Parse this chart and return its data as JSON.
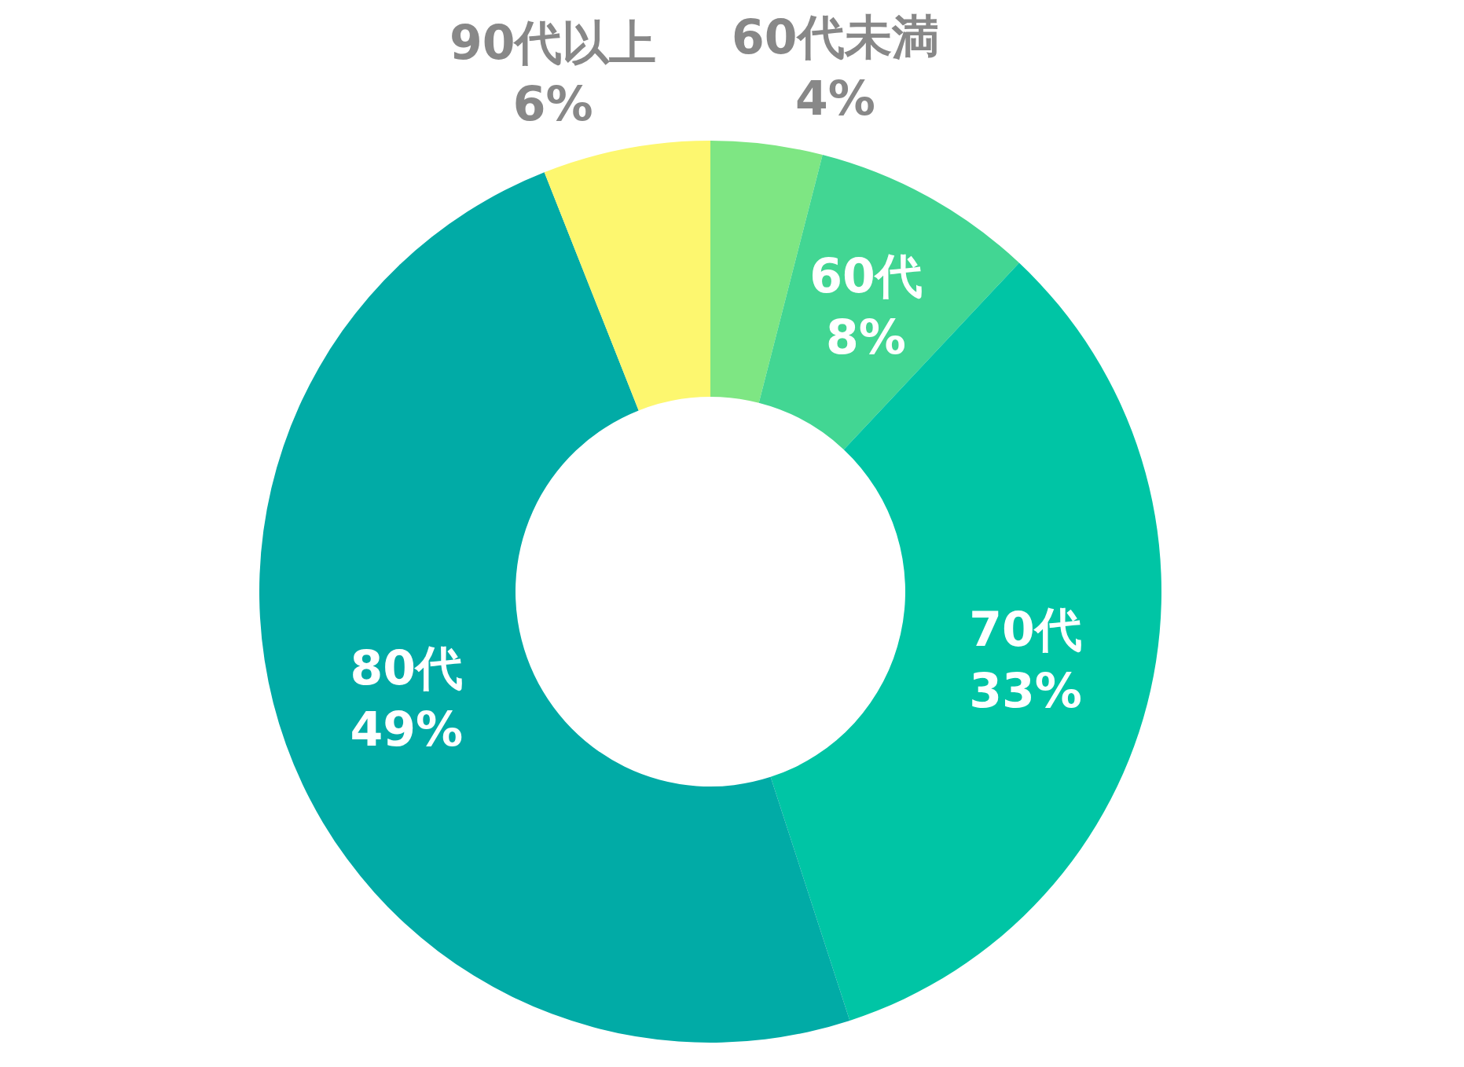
{
  "chart_data": {
    "type": "donut",
    "categories": [
      "60代未満",
      "60代",
      "70代",
      "80代",
      "90代以上"
    ],
    "values": [
      4,
      8,
      33,
      49,
      6
    ],
    "colors": [
      "#7ee683",
      "#42d693",
      "#00c5a5",
      "#01aba6",
      "#fdf76f"
    ],
    "value_labels": [
      "4%",
      "8%",
      "33%",
      "49%",
      "6%"
    ]
  }
}
